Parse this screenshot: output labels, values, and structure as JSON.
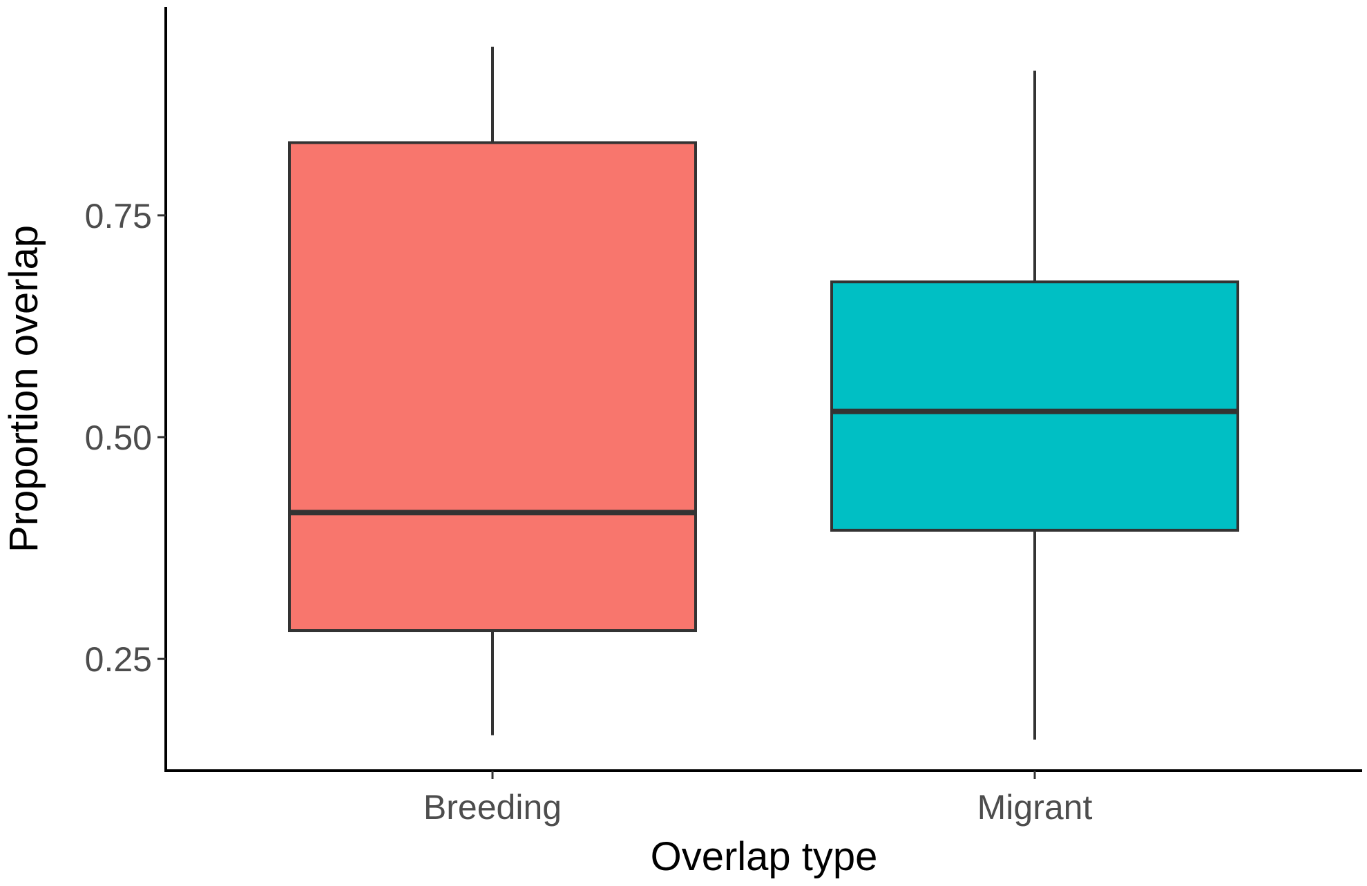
{
  "chart_data": {
    "type": "box",
    "xlabel": "Overlap type",
    "ylabel": "Proportion overlap",
    "ylim": [
      0.124,
      0.985
    ],
    "yticks": [
      {
        "value": 0.25,
        "label": "0.25"
      },
      {
        "value": 0.5,
        "label": "0.50"
      },
      {
        "value": 0.75,
        "label": "0.75"
      }
    ],
    "categories": [
      "Breeding",
      "Migrant"
    ],
    "boxes": [
      {
        "category": "Breeding",
        "min": 0.164,
        "q1": 0.282,
        "median": 0.415,
        "q3": 0.832,
        "max": 0.94,
        "fill": "#F8766D"
      },
      {
        "category": "Migrant",
        "min": 0.159,
        "q1": 0.395,
        "median": 0.529,
        "q3": 0.675,
        "max": 0.913,
        "fill": "#00BFC4"
      }
    ],
    "grid": false,
    "legend": "none",
    "colors": {
      "outline": "#333333",
      "axis": "#000000",
      "tick_text": "#4d4d4d"
    }
  }
}
